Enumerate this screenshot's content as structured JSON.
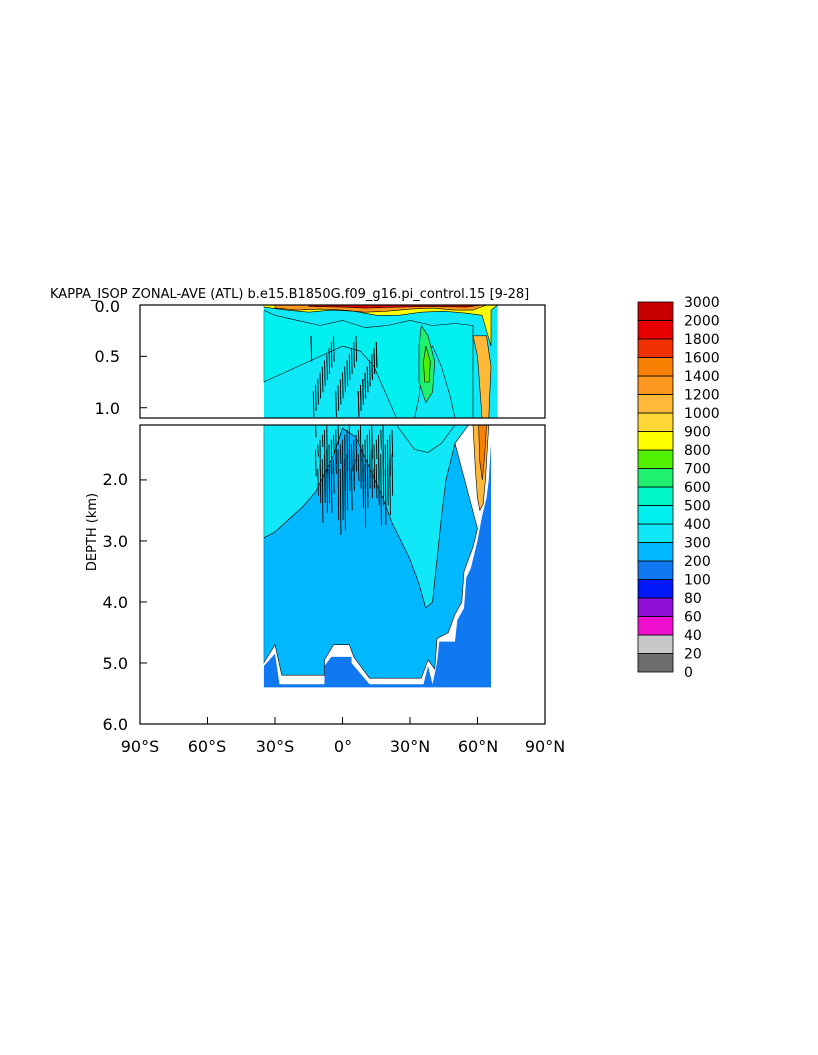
{
  "chart_data": {
    "type": "heatmap",
    "title": "KAPPA_ISOP ZONAL-AVE (ATL) b.e15.B1850G.f09_g16.pi_control.15 [9-28]",
    "ylabel": "DEPTH (km)",
    "xlabel": "",
    "x_ticks": [
      "90°S",
      "60°S",
      "30°S",
      "0°",
      "30°N",
      "60°N",
      "90°N"
    ],
    "y_ticks_upper": [
      "0.0",
      "0.5",
      "1.0"
    ],
    "y_ticks_lower": [
      "2.0",
      "3.0",
      "4.0",
      "5.0",
      "6.0"
    ],
    "xlim": [
      -90,
      90
    ],
    "ylim_upper": [
      0,
      1.1
    ],
    "ylim_lower": [
      1.1,
      6.0
    ],
    "colorbar": {
      "levels": [
        0,
        20,
        40,
        60,
        80,
        100,
        200,
        300,
        400,
        500,
        600,
        700,
        800,
        900,
        1000,
        1200,
        1400,
        1600,
        1800,
        2000,
        3000
      ],
      "colors": [
        "#6e6e6e",
        "#c8c8c8",
        "#f010d0",
        "#9010d8",
        "#0018f8",
        "#1078f0",
        "#00b8ff",
        "#10e8f8",
        "#00f0f0",
        "#00f8c8",
        "#20f070",
        "#50f000",
        "#ffff00",
        "#ffd838",
        "#ffb838",
        "#ff9820",
        "#f88000",
        "#f03000",
        "#e80000",
        "#c80000"
      ]
    },
    "data_extent": {
      "lat_min": -35,
      "lat_max": 69,
      "max_depth_km": 5.35
    },
    "regions": [
      {
        "desc": "deep water",
        "value_range": [
          200,
          300
        ]
      },
      {
        "desc": "mid-depth water",
        "value_range": [
          300,
          400
        ]
      },
      {
        "desc": "bottom rim",
        "value_range": [
          100,
          200
        ]
      },
      {
        "desc": "near-surface belt",
        "value_range": [
          400,
          700
        ]
      },
      {
        "desc": "subtropical mid-depth core near 38N",
        "value_range": [
          600,
          800
        ]
      },
      {
        "desc": "high-latitude boundary near 63N",
        "value_range": [
          900,
          1400
        ]
      },
      {
        "desc": "surface layer",
        "value_range": [
          1000,
          3000
        ]
      }
    ]
  }
}
